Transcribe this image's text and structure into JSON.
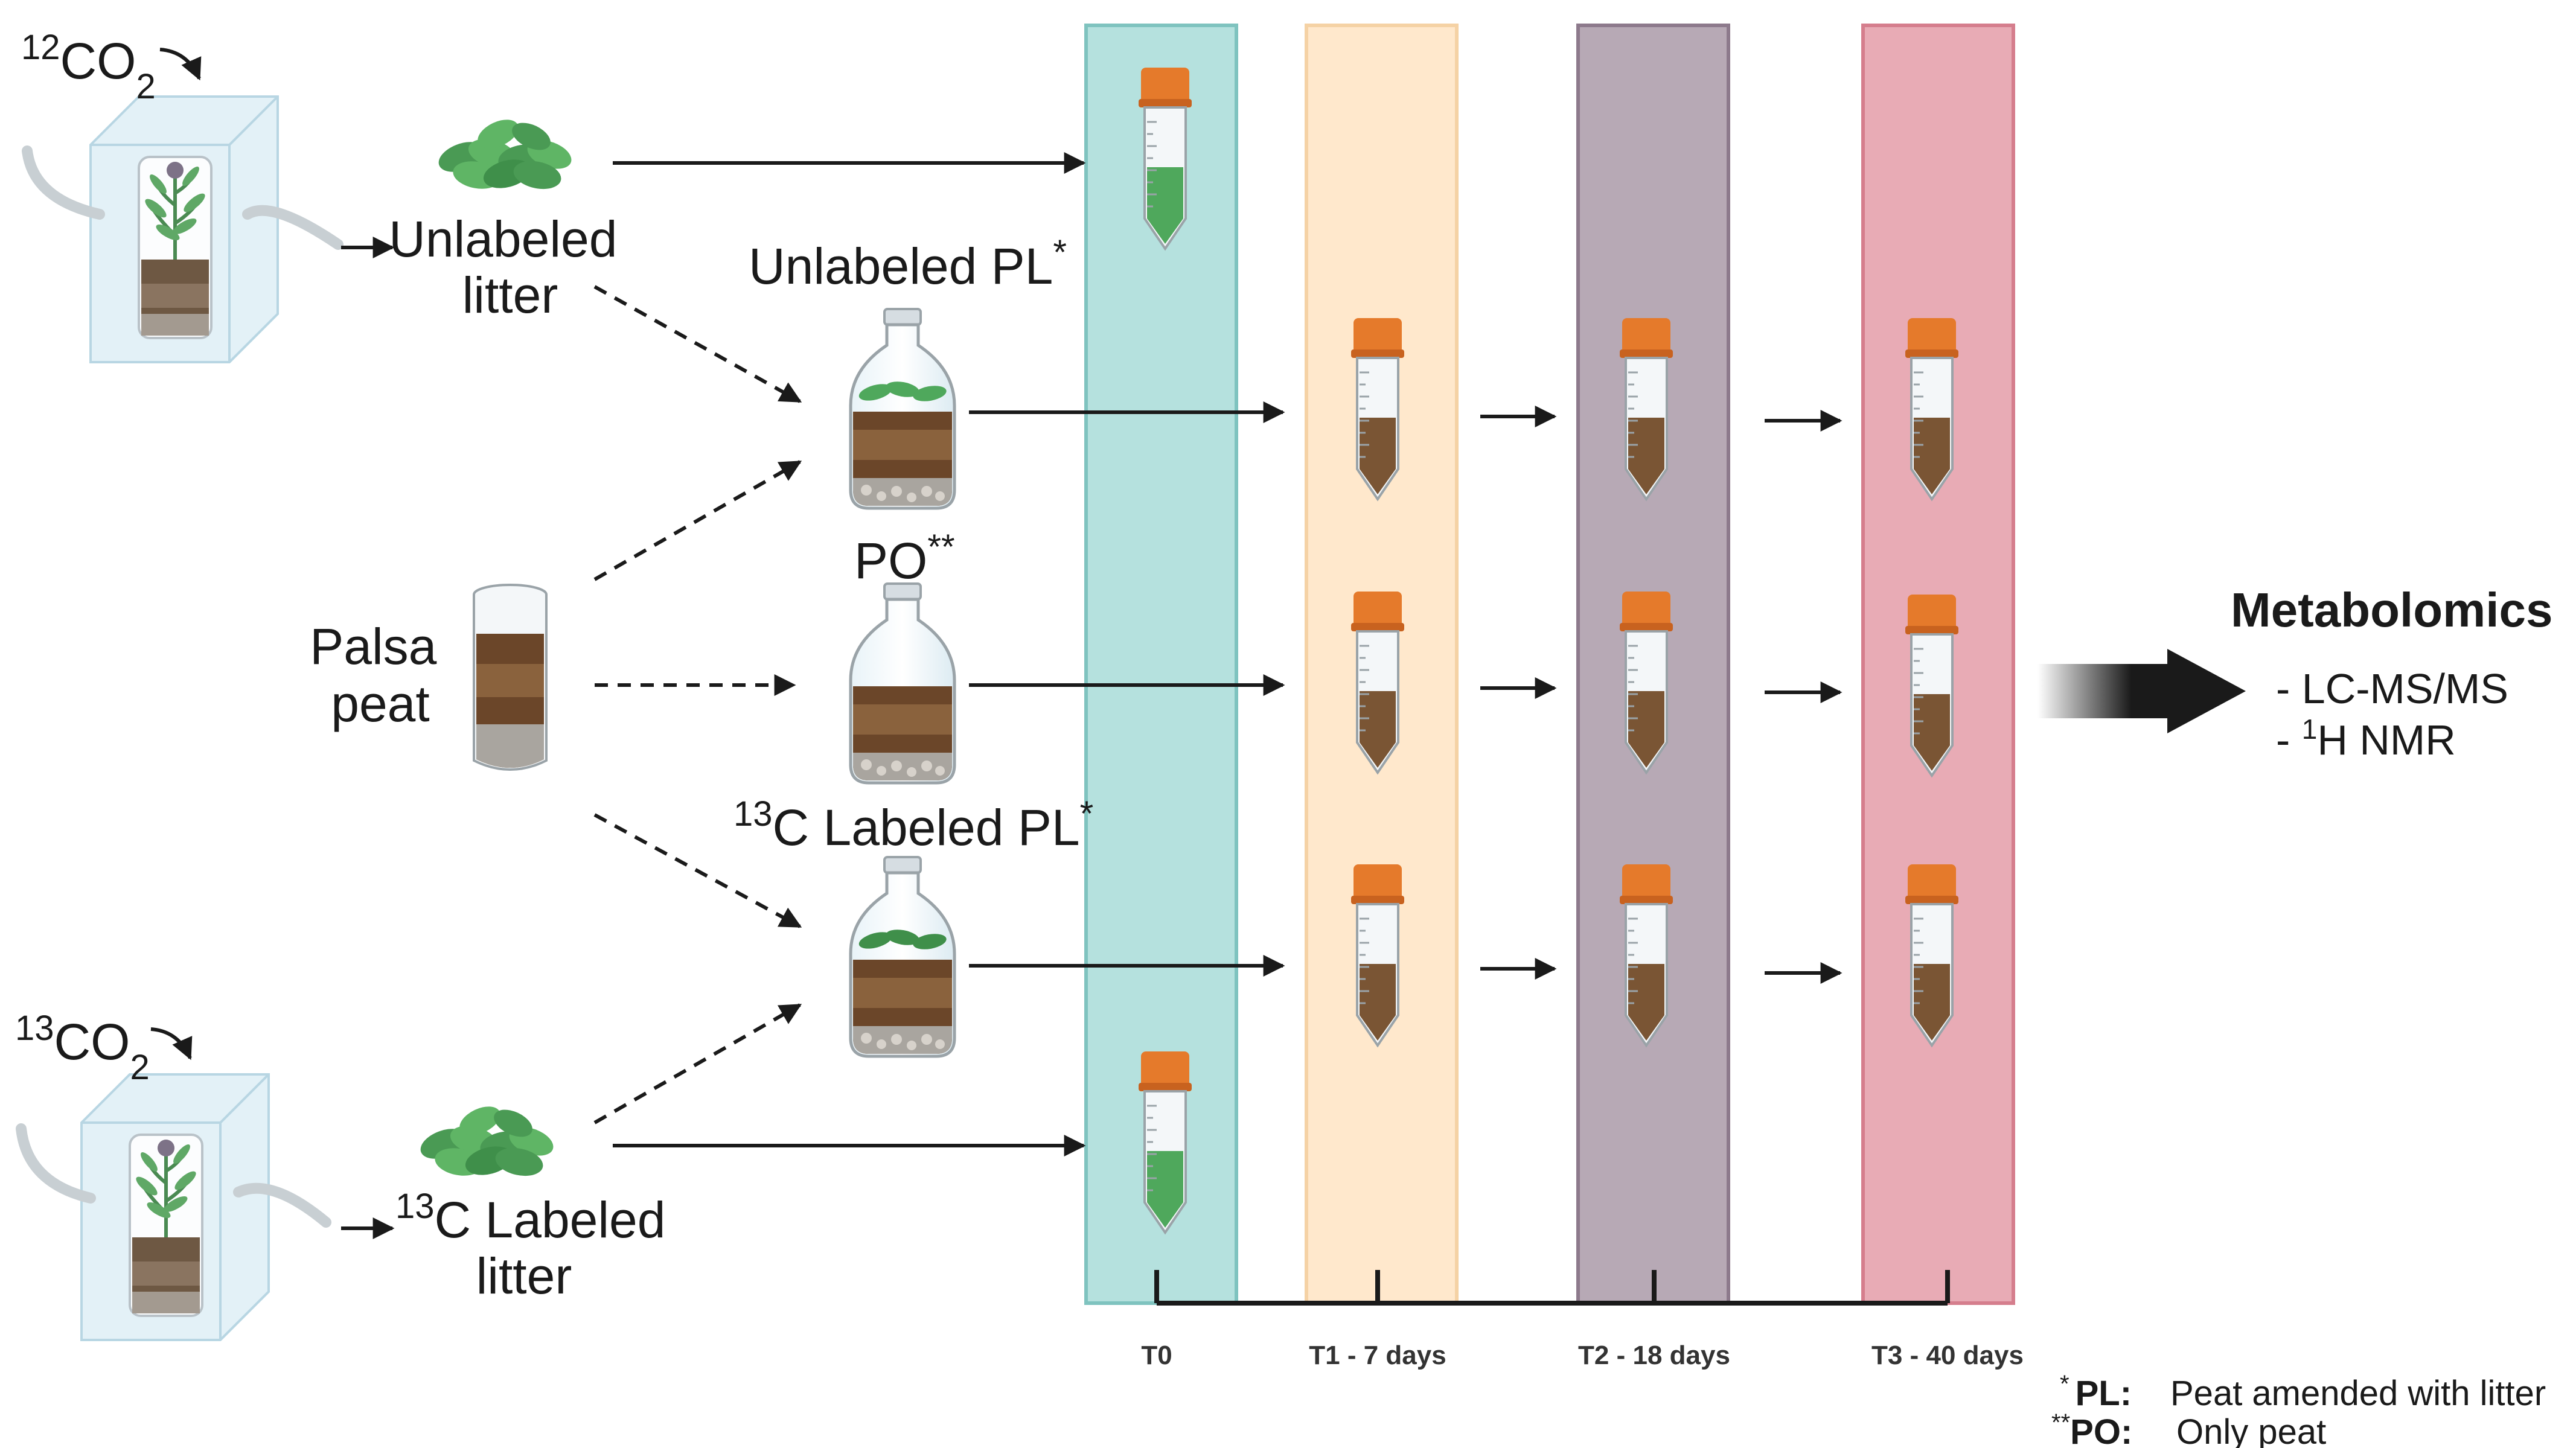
{
  "co2_top": {
    "mass": "12",
    "formula": "CO",
    "sub": "2"
  },
  "co2_bottom": {
    "mass": "13",
    "formula": "CO",
    "sub": "2"
  },
  "unlabeled_litter": {
    "line1": "Unlabeled",
    "line2": "litter"
  },
  "labeled_litter": {
    "mass": "13",
    "line1": "C Labeled",
    "line2": "litter"
  },
  "palsa_peat": {
    "line1": "Palsa",
    "line2": "peat"
  },
  "bottle_unlabeled": {
    "label": "Unlabeled PL",
    "mark": "*"
  },
  "bottle_po": {
    "label": "PO",
    "mark": "**"
  },
  "bottle_labeled": {
    "mass": "13",
    "label": "C Labeled PL",
    "mark": "*"
  },
  "timepoints": [
    "T0",
    "T1 - 7 days",
    "T2 - 18 days",
    "T3 - 40 days"
  ],
  "metabolomics": {
    "title": "Metabolomics",
    "item1": "- LC-MS/MS",
    "item2_prefix": "- ",
    "item2_mass": "1",
    "item2_rest": "H NMR"
  },
  "legend": {
    "pl": {
      "mark": "*",
      "key": "PL:",
      "desc": "Peat amended with litter"
    },
    "po": {
      "mark": "**",
      "key": "PO:",
      "desc": "Only peat"
    }
  },
  "colors": {
    "t0": "#b5e1de",
    "t1": "#ffe8cc",
    "t2": "#b7a9b5",
    "t3": "#e8abb5",
    "tube_cap": "#e57a2b",
    "soil": "#7a5534",
    "litter_green": "#4fa85c"
  }
}
